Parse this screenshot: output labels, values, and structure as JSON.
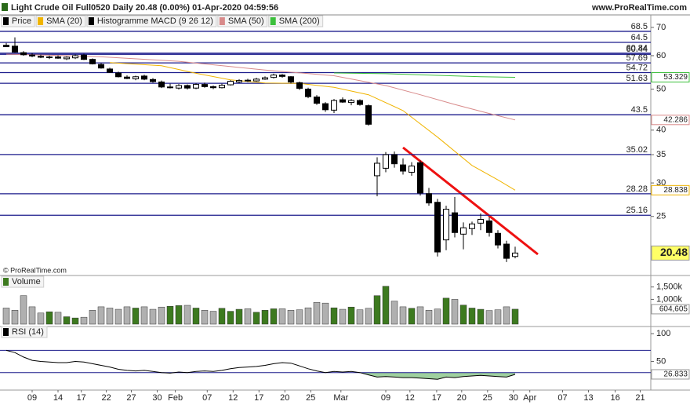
{
  "header": {
    "title": "Light Crude Oil Full0520 Daily 20.48 (0.00%) 01-Apr-2020 04:59:56",
    "site": "www.ProRealTime.com"
  },
  "copyright": "© ProRealTime.com",
  "chart_data": [
    {
      "type": "candlestick",
      "log_scale": true,
      "ylim": [
        18.2,
        74.6
      ],
      "yticks": [
        70,
        60,
        50,
        40,
        35,
        30,
        25
      ],
      "candles": {
        "name": "Price",
        "color": "#000000",
        "open": [
          63.5,
          63.2,
          61.0,
          60.2,
          59.8,
          59.4,
          59.6,
          59.0,
          59.3,
          60.2,
          58.8,
          57.2,
          55.8,
          54.6,
          53.4,
          52.9,
          53.7,
          52.7,
          52.0,
          50.6,
          50.3,
          51.0,
          50.3,
          51.3,
          50.7,
          50.4,
          51.2,
          52.0,
          52.5,
          52.3,
          52.8,
          53.3,
          54.0,
          53.5,
          51.8,
          50.0,
          47.9,
          46.2,
          44.6,
          47.2,
          46.5,
          47.0,
          45.7,
          31.2,
          32.5,
          35.0,
          33.1,
          31.8,
          33.5,
          28.3,
          27.0,
          22.0,
          25.5,
          22.7,
          23.4,
          24.1,
          24.4,
          22.8,
          21.5,
          20.1
        ],
        "high": [
          64.3,
          66.3,
          61.5,
          60.8,
          60.3,
          60.0,
          60.1,
          59.8,
          60.4,
          60.6,
          59.1,
          57.6,
          56.2,
          55.0,
          53.9,
          53.8,
          54.1,
          53.1,
          52.4,
          51.5,
          51.4,
          51.3,
          51.6,
          51.8,
          51.0,
          51.5,
          52.5,
          52.8,
          52.9,
          53.2,
          53.6,
          54.4,
          54.3,
          53.7,
          52.1,
          50.4,
          48.4,
          46.6,
          47.4,
          47.8,
          47.4,
          47.3,
          46.0,
          34.5,
          35.5,
          35.6,
          34.3,
          33.6,
          33.9,
          29.2,
          27.5,
          26.5,
          27.8,
          24.2,
          24.3,
          25.4,
          24.9,
          23.2,
          21.9,
          21.2
        ],
        "low": [
          62.9,
          61.0,
          60.0,
          59.5,
          59.2,
          58.9,
          59.0,
          58.6,
          58.9,
          58.6,
          57.2,
          55.9,
          54.6,
          53.3,
          52.8,
          52.5,
          52.5,
          51.8,
          50.3,
          50.2,
          49.9,
          49.9,
          50.0,
          50.4,
          50.0,
          50.2,
          51.0,
          51.7,
          52.0,
          52.1,
          52.6,
          53.0,
          53.2,
          51.6,
          49.8,
          47.6,
          45.9,
          44.2,
          43.9,
          46.4,
          45.8,
          45.7,
          41.0,
          27.9,
          31.8,
          32.6,
          31.4,
          31.2,
          28.0,
          26.5,
          20.1,
          20.8,
          22.3,
          20.9,
          22.6,
          23.2,
          22.4,
          21.0,
          19.5,
          19.9
        ],
        "close": [
          63.0,
          61.2,
          60.3,
          59.9,
          59.5,
          59.6,
          59.2,
          59.5,
          60.0,
          58.8,
          57.4,
          56.1,
          54.8,
          53.5,
          53.0,
          53.5,
          52.8,
          52.1,
          50.6,
          50.6,
          51.0,
          50.3,
          51.3,
          50.7,
          50.4,
          51.1,
          52.2,
          52.4,
          52.3,
          52.8,
          53.2,
          54.0,
          53.6,
          52.0,
          50.2,
          48.0,
          46.3,
          44.7,
          47.0,
          46.6,
          47.0,
          46.0,
          41.3,
          33.4,
          35.0,
          33.3,
          32.0,
          32.9,
          28.4,
          26.9,
          20.6,
          26.0,
          22.9,
          23.5,
          24.0,
          24.6,
          22.9,
          21.4,
          19.9,
          20.48
        ]
      },
      "series": [
        {
          "name": "SMA (20)",
          "color": "#f0b400",
          "x": [
            12,
            18,
            22,
            26,
            30,
            34,
            38,
            42,
            46,
            50,
            54,
            57,
            59
          ],
          "values": [
            57.8,
            56.8,
            54.5,
            52.6,
            51.7,
            51.6,
            50.5,
            48.5,
            44.5,
            38.5,
            33,
            30.5,
            28.838
          ]
        },
        {
          "name": "Histogramme MACD (9 26 12)",
          "color": "#000000"
        },
        {
          "name": "SMA (50)",
          "color": "#d88a8a",
          "x": [
            0,
            10,
            20,
            30,
            38,
            44,
            48,
            52,
            56,
            59
          ],
          "values": [
            60.5,
            59.8,
            58.2,
            55.5,
            53.8,
            51.0,
            48.5,
            46,
            43.8,
            42.286
          ]
        },
        {
          "name": "SMA (200)",
          "color": "#3cc03c",
          "x": [
            38,
            44,
            50,
            55,
            59
          ],
          "values": [
            54.6,
            54.4,
            53.9,
            53.5,
            53.329
          ]
        }
      ],
      "levels": [
        68.5,
        64.5,
        60.84,
        60.44,
        57.69,
        54.72,
        51.63,
        43.5,
        35.02,
        28.28,
        25.16
      ],
      "level_color": "#1c1c8c"
    },
    {
      "type": "bar",
      "up_color": "#3d7a1f",
      "down_color": "#b0b0b0",
      "ylim": [
        0,
        1900000
      ],
      "yticks": [
        {
          "value": 1500000,
          "label": "1,500k"
        },
        {
          "value": 1000000,
          "label": "1,000k"
        }
      ],
      "series": [
        {
          "name": "Volume",
          "values": [
            650000,
            560000,
            1150000,
            700000,
            450000,
            500000,
            480000,
            300000,
            250000,
            280000,
            560000,
            700000,
            650000,
            600000,
            700000,
            650000,
            700000,
            600000,
            690000,
            720000,
            750000,
            760000,
            650000,
            560000,
            520000,
            640000,
            520000,
            600000,
            620000,
            480000,
            560000,
            620000,
            620000,
            560000,
            580000,
            660000,
            880000,
            850000,
            660000,
            600000,
            690000,
            580000,
            640000,
            1150000,
            1530000,
            930000,
            700000,
            640000,
            700000,
            560000,
            610000,
            1050000,
            1000000,
            770000,
            650000,
            600000,
            550000,
            580000,
            700000,
            604605
          ],
          "last_value_label": "604,605"
        }
      ]
    },
    {
      "type": "line",
      "ylim": [
        0,
        110
      ],
      "yticks": [
        100,
        50
      ],
      "levels": [
        70,
        30
      ],
      "level_color": "#1c1c8c",
      "fill_color": "#9fd09f",
      "series": [
        {
          "name": "RSI (14)",
          "color": "#000000",
          "values": [
            70,
            66,
            58,
            52,
            50,
            49,
            48,
            48,
            50,
            49,
            46,
            43,
            40,
            36,
            34,
            33,
            34,
            32,
            30,
            29,
            31,
            30,
            32,
            33,
            32,
            34,
            37,
            39,
            40,
            41,
            43,
            46,
            48,
            47,
            42,
            37,
            33,
            30,
            32,
            31,
            32,
            30,
            26,
            22,
            23,
            22,
            21,
            21,
            20,
            19,
            18,
            22,
            21,
            23,
            24,
            25,
            24,
            23,
            22,
            26.833
          ]
        }
      ],
      "xlim": [
        -0.727,
        74.727
      ],
      "xticks": [
        {
          "value": 3,
          "label": "09"
        },
        {
          "value": 6,
          "label": "14"
        },
        {
          "value": 8.7,
          "label": "17"
        },
        {
          "value": 11.6,
          "label": "22"
        },
        {
          "value": 14.5,
          "label": "27"
        },
        {
          "value": 17.5,
          "label": "30"
        },
        {
          "value": 19.6,
          "label": "Feb"
        },
        {
          "value": 23.3,
          "label": "07"
        },
        {
          "value": 26.3,
          "label": "12"
        },
        {
          "value": 29.3,
          "label": "17"
        },
        {
          "value": 32.3,
          "label": "20"
        },
        {
          "value": 35.3,
          "label": "25"
        },
        {
          "value": 38.8,
          "label": "Mar"
        },
        {
          "value": 44,
          "label": "09"
        },
        {
          "value": 46.8,
          "label": "12"
        },
        {
          "value": 49.9,
          "label": "17"
        },
        {
          "value": 52.8,
          "label": "20"
        },
        {
          "value": 55.8,
          "label": "25"
        },
        {
          "value": 58.8,
          "label": "30"
        },
        {
          "value": 60.7,
          "label": "Apr"
        },
        {
          "value": 64.5,
          "label": "07"
        },
        {
          "value": 67.5,
          "label": "13"
        },
        {
          "value": 70.6,
          "label": "16"
        },
        {
          "value": 73.5,
          "label": "21"
        }
      ]
    }
  ]
}
